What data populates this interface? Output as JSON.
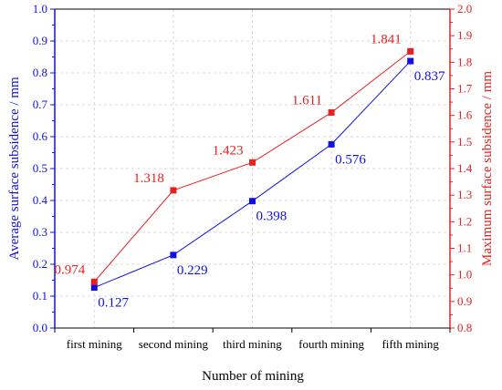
{
  "chart_data": {
    "type": "line",
    "categories": [
      "first mining",
      "second mining",
      "third mining",
      "fourth mining",
      "fifth mining"
    ],
    "xlabel": "Number of mining",
    "y_left": {
      "label": "Average surface subsidence / mm",
      "range": [
        0.0,
        1.0
      ],
      "ticks": [
        "0.0",
        "0.1",
        "0.2",
        "0.3",
        "0.4",
        "0.5",
        "0.6",
        "0.7",
        "0.8",
        "0.9",
        "1.0"
      ],
      "color": "#1010e0"
    },
    "y_right": {
      "label": "Maximum surface subsidence / mm",
      "range": [
        0.8,
        2.0
      ],
      "ticks": [
        "0.8",
        "0.9",
        "1.0",
        "1.1",
        "1.2",
        "1.3",
        "1.4",
        "1.5",
        "1.6",
        "1.7",
        "1.8",
        "1.9",
        "2.0"
      ],
      "color": "#e82020"
    },
    "series": [
      {
        "axis": "left",
        "color": "#1010e0",
        "values": [
          0.127,
          0.229,
          0.398,
          0.576,
          0.837
        ],
        "labels": [
          "0.127",
          "0.229",
          "0.398",
          "0.576",
          "0.837"
        ]
      },
      {
        "axis": "right",
        "color": "#e82020",
        "values": [
          0.974,
          1.318,
          1.423,
          1.611,
          1.841
        ],
        "labels": [
          "0.974",
          "1.318",
          "1.423",
          "1.611",
          "1.841"
        ]
      }
    ],
    "grid": true
  }
}
